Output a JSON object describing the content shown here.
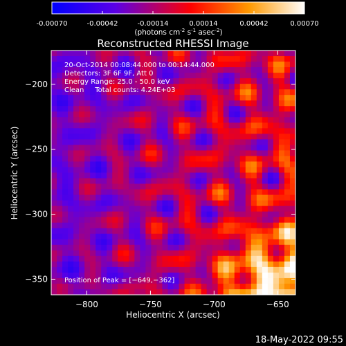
{
  "colorbar": {
    "ticks": [
      "-0.00070",
      "-0.00042",
      "-0.00014",
      "0.00014",
      "0.00042",
      "0.00070"
    ],
    "unit_label": "(photons cm",
    "unit_sup1": "-2",
    "unit_mid1": " s",
    "unit_sup2": "-1",
    "unit_mid2": " asec",
    "unit_sup3": "-2",
    "unit_end": ")",
    "colors": [
      "#0000ff",
      "#5a00e6",
      "#ff0000",
      "#ff9900",
      "#ffffff"
    ]
  },
  "chart_data": {
    "type": "heatmap",
    "title": "Reconstructed RHESSI Image",
    "xlabel": "Heliocentric X (arcsec)",
    "ylabel": "Heliocentric Y (arcsec)",
    "xlim": [
      -828,
      -636
    ],
    "ylim": [
      -362,
      -174
    ],
    "xticks": [
      -800,
      -750,
      -700,
      -650
    ],
    "xtick_labels": [
      "−800",
      "−750",
      "−700",
      "−650"
    ],
    "yticks": [
      -350,
      -300,
      -250,
      -200
    ],
    "ytick_labels": [
      "−350",
      "−300",
      "−250",
      "−200"
    ],
    "value_range": [
      -0.0007,
      0.0007
    ],
    "peak": [
      -649,
      -362
    ],
    "annotations": [
      "20-Oct-2014 00:08:44.000 to 00:14:44.000",
      "Detectors: 3F 6F 9F, Att 0",
      "Energy Range: 25.0 - 50.0 keV",
      "Clean     Total counts: 4.24E+03"
    ],
    "peak_label": "Position of Peak = [−649,−362]"
  },
  "footer": {
    "timestamp": "18-May-2022 09:55"
  }
}
